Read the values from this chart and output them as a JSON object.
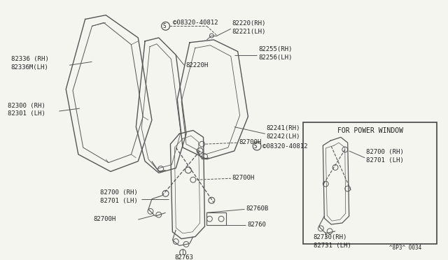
{
  "bg_color": "#f5f5f0",
  "line_color": "#555555",
  "text_color": "#222222",
  "watermark": "^8P3^ 0034",
  "inset_title": "FOR POWER WINDOW",
  "labels": {
    "s08320_top": "©08320-40812",
    "82220": "82220(RH)\n82221(LH)",
    "82255": "82255(RH)\n82256(LH)",
    "82336": "82336 (RH)\n82336M(LH)",
    "82220H": "82220H",
    "82300": "82300 (RH)\n82301 (LH)",
    "82241": "82241(RH)\n82242(LH)",
    "82700H_top": "82700H",
    "s08320_mid": "©08320-40812",
    "82700H_mid": "82700H",
    "82700": "82700 (RH)\n82701 (LH)",
    "82760B": "82760B",
    "82760": "82760",
    "82700H_bot": "82700H",
    "82763": "82763",
    "inset_82700": "82700 (RH)\n82701 (LH)",
    "inset_82730": "82730(RH)\n82731 (LH)"
  }
}
